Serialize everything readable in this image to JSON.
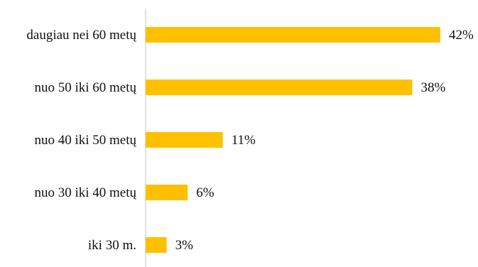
{
  "chart_data": {
    "type": "bar",
    "orientation": "horizontal",
    "categories": [
      "daugiau nei 60 metų",
      "nuo 50 iki 60 metų",
      "nuo 40 iki 50 metų",
      "nuo 30 iki 40 metų",
      "iki 30 m."
    ],
    "values": [
      42,
      38,
      11,
      6,
      3
    ],
    "data_labels": [
      "42%",
      "38%",
      "11%",
      "6%",
      "3%"
    ],
    "unit": "%",
    "xlim": [
      0,
      45
    ],
    "grid": false,
    "legend": "none",
    "bar_color": "#FFC000",
    "axis_color": "#D9D9D9"
  }
}
